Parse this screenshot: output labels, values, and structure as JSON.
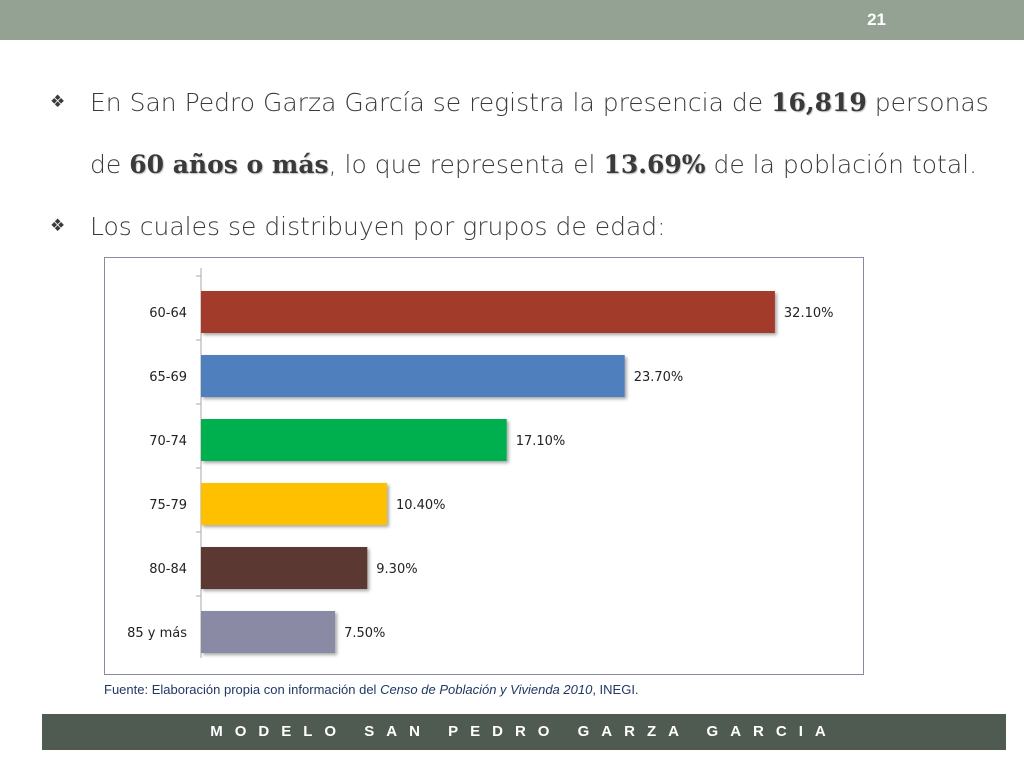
{
  "slide": {
    "number": "21"
  },
  "bullets": {
    "b1_part1": "En San Pedro Garza García se registra la presencia de ",
    "b1_bold1": "16,819",
    "b1_part2": " personas",
    "b1_line2_part1": "de ",
    "b1_bold2": "60 años o más",
    "b1_line2_part2": ", lo que representa el  ",
    "b1_bold3": "13.69%",
    "b1_line2_part3": " de la población total.",
    "b2": "Los cuales se distribuyen por grupos de edad:"
  },
  "chart_data": {
    "type": "bar",
    "orientation": "horizontal",
    "categories": [
      "60-64",
      "65-69",
      "70-74",
      "75-79",
      "80-84",
      "85 y más"
    ],
    "values": [
      32.1,
      23.7,
      17.1,
      10.4,
      9.3,
      7.5
    ],
    "value_labels": [
      "32.10%",
      "23.70%",
      "17.10%",
      "10.40%",
      "9.30%",
      "7.50%"
    ],
    "colors": [
      "#a33a2b",
      "#4f7fbd",
      "#00b050",
      "#ffc000",
      "#5c3830",
      "#8a8aa4"
    ],
    "xlim": [
      0,
      33
    ],
    "grid": false
  },
  "source": {
    "prefix": "Fuente: Elaboración propia con información del ",
    "italic": "Censo de Población y Vivienda  2010",
    "suffix": ", INEGI."
  },
  "footer": {
    "text": "MODELO SAN PEDRO GARZA GARCIA"
  }
}
